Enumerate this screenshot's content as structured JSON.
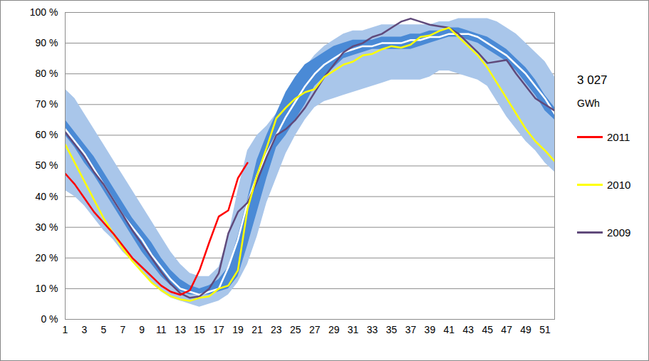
{
  "chart_data": {
    "type": "line",
    "x": [
      1,
      2,
      3,
      4,
      5,
      6,
      7,
      8,
      9,
      10,
      11,
      12,
      13,
      14,
      15,
      16,
      17,
      18,
      19,
      20,
      21,
      22,
      23,
      24,
      25,
      26,
      27,
      28,
      29,
      30,
      31,
      32,
      33,
      34,
      35,
      36,
      37,
      38,
      39,
      40,
      41,
      42,
      43,
      44,
      45,
      46,
      47,
      48,
      49,
      50,
      51,
      52
    ],
    "xlim": [
      1,
      52
    ],
    "xticks": [
      1,
      3,
      5,
      7,
      9,
      11,
      13,
      15,
      17,
      19,
      21,
      23,
      25,
      27,
      29,
      31,
      33,
      35,
      37,
      39,
      41,
      43,
      45,
      47,
      49,
      51
    ],
    "ylim": [
      0,
      100
    ],
    "yticks": [
      {
        "value": 0,
        "label": "0 %"
      },
      {
        "value": 10,
        "label": "10 %"
      },
      {
        "value": 20,
        "label": "20 %"
      },
      {
        "value": 30,
        "label": "30 %"
      },
      {
        "value": 40,
        "label": "40 %"
      },
      {
        "value": 50,
        "label": "50 %"
      },
      {
        "value": 60,
        "label": "60 %"
      },
      {
        "value": 70,
        "label": "70 %"
      },
      {
        "value": 80,
        "label": "80 %"
      },
      {
        "value": 90,
        "label": "90 %"
      },
      {
        "value": 100,
        "label": "100 %"
      }
    ],
    "grid": true,
    "legend": "right",
    "annotations": [
      "3 027",
      "GWh"
    ],
    "bands": [
      {
        "color": "#a9c6ea",
        "lower": [
          42,
          40,
          37,
          33,
          29,
          26,
          22,
          19,
          15,
          12,
          9,
          7,
          6,
          5,
          4,
          5,
          6,
          8,
          12,
          18,
          27,
          38,
          46,
          54,
          60,
          65,
          69,
          71,
          72,
          73,
          74,
          75,
          76,
          77,
          78,
          78,
          78,
          78,
          79,
          81,
          81,
          80,
          79,
          78,
          76,
          71,
          66,
          62,
          58,
          55,
          51,
          48
        ],
        "upper": [
          75,
          72,
          67,
          62,
          57,
          52,
          47,
          42,
          37,
          32,
          27,
          22,
          18,
          15,
          14,
          14,
          17,
          27,
          42,
          55,
          60,
          63,
          67,
          73,
          78,
          82,
          86,
          89,
          91,
          93,
          94,
          94,
          95,
          96,
          96,
          96,
          96,
          96,
          96,
          97,
          97,
          98,
          98,
          98,
          98,
          97,
          95,
          93,
          90,
          87,
          84,
          79
        ]
      },
      {
        "color": "#4a8ad6",
        "lower": [
          60,
          56,
          51,
          47,
          42,
          37,
          32,
          27,
          22,
          18,
          14,
          11,
          9,
          8,
          8,
          8,
          9,
          10,
          14,
          24,
          35,
          46,
          56,
          60,
          65,
          70,
          76,
          79,
          82,
          85,
          86,
          87,
          88,
          88,
          88,
          88,
          88,
          89,
          90,
          91,
          92,
          92,
          91,
          90,
          88,
          86,
          84,
          81,
          77,
          73,
          68,
          65
        ],
        "upper": [
          65,
          61,
          57,
          53,
          48,
          43,
          38,
          33,
          29,
          25,
          20,
          16,
          13,
          11,
          10,
          11,
          13,
          17,
          27,
          39,
          52,
          60,
          67,
          74,
          79,
          83,
          85,
          87,
          89,
          90,
          91,
          91,
          91,
          92,
          92,
          92,
          93,
          93,
          94,
          94,
          95,
          95,
          94,
          93,
          92,
          90,
          88,
          85,
          82,
          78,
          73,
          69
        ]
      }
    ],
    "median": {
      "color": "#ffffff",
      "values": [
        62,
        58,
        54,
        49,
        44,
        39,
        34,
        30,
        26,
        21,
        17,
        13,
        10,
        9,
        8,
        9,
        10,
        17,
        26,
        38,
        47,
        54,
        60,
        66,
        71,
        76,
        80,
        83,
        85,
        87,
        88,
        89,
        89,
        90,
        90,
        90,
        91,
        91,
        92,
        92,
        93,
        93,
        93,
        92,
        90,
        88,
        86,
        83,
        80,
        76,
        72,
        67
      ]
    },
    "series": [
      {
        "name": "2011",
        "color": "#ff0000",
        "values": [
          47.5,
          44,
          39.5,
          35,
          31.5,
          28,
          24,
          20,
          17,
          14,
          11,
          9,
          8,
          9.5,
          16,
          25,
          33.5,
          35.5,
          46,
          51,
          null,
          null,
          null,
          null,
          null,
          null,
          null,
          null,
          null,
          null,
          null,
          null,
          null,
          null,
          null,
          null,
          null,
          null,
          null,
          null,
          null,
          null,
          null,
          null,
          null,
          null,
          null,
          null,
          null,
          null,
          null,
          null
        ]
      },
      {
        "name": "2010",
        "color": "#ffff00",
        "values": [
          57,
          51,
          45,
          39,
          33,
          28,
          23,
          19,
          15.5,
          12,
          9.5,
          7.5,
          6.5,
          6,
          7,
          7.5,
          10,
          11,
          16,
          36,
          47,
          56,
          65.5,
          69,
          72,
          74,
          75,
          79,
          81,
          83,
          84,
          86,
          86.5,
          88,
          89,
          88.5,
          89.5,
          92,
          92.5,
          94,
          95,
          92,
          89,
          86,
          82,
          77,
          72,
          67,
          62,
          58,
          55,
          51.5
        ]
      },
      {
        "name": "2009",
        "color": "#604a7b",
        "values": [
          61,
          57,
          53,
          48,
          44,
          39,
          34,
          29,
          24.5,
          20,
          15.5,
          11.5,
          8.5,
          7,
          7.5,
          10,
          15,
          28,
          35,
          38,
          45,
          53,
          60,
          62,
          65,
          69,
          74,
          79,
          83,
          87,
          89,
          90,
          92,
          93,
          95,
          97,
          98,
          97,
          96,
          95.5,
          95,
          93,
          90,
          87,
          83.5,
          84,
          84.5,
          80,
          76,
          72,
          70,
          68
        ]
      }
    ]
  }
}
